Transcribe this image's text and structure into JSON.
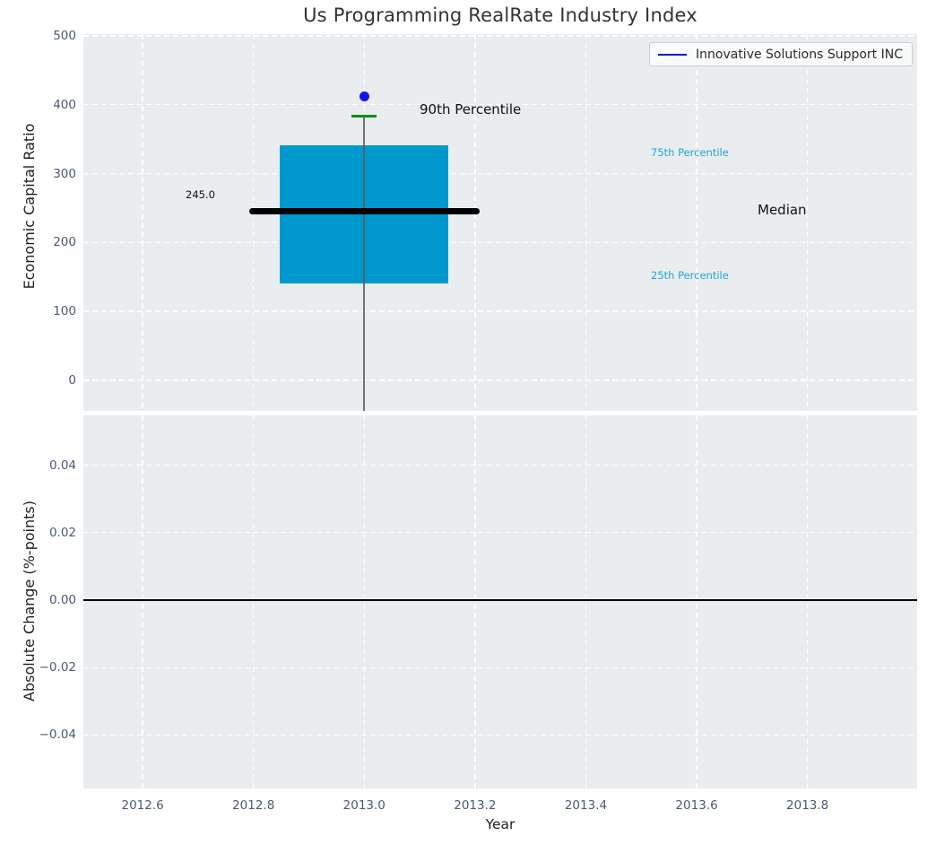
{
  "title": "Us Programming RealRate Industry Index",
  "legend": {
    "label": "Innovative Solutions Support INC",
    "line_color": "#1111e0"
  },
  "colors": {
    "box": "#0099cd",
    "percentile_label_text": "#22a5d4",
    "p90_cap": "#118c11",
    "company_point": "#1414ec",
    "median_line": "#000000",
    "whisker": "#5a5a5a",
    "plot_background": "#e9edef",
    "tick_text": "#4b5a6e",
    "zero_line": "#000000"
  },
  "chart_data": [
    {
      "type": "box",
      "title": "Us Programming RealRate Industry Index",
      "ylabel": "Economic Capital Ratio",
      "x": [
        2013.0
      ],
      "series": [
        {
          "name": "Innovative Solutions Support INC",
          "values": [
            412
          ]
        }
      ],
      "percentiles": {
        "p90": 383,
        "p75": 341,
        "median": 245.0,
        "p25": 140
      },
      "labels": {
        "p90": "90th Percentile",
        "p75": "75th Percentile",
        "median": "Median",
        "p25": "25th Percentile",
        "median_value": "245.0"
      },
      "ylim": [
        -44.3,
        502.6
      ],
      "xlim": [
        2012.493,
        2013.998
      ],
      "ytick_values": [
        0,
        100,
        200,
        300,
        400,
        500
      ],
      "ytick_labels": [
        "0",
        "100",
        "200",
        "300",
        "400",
        "500"
      ],
      "xtick_values": [
        2012.6,
        2012.8,
        2013.0,
        2013.2,
        2013.4,
        2013.6,
        2013.8
      ],
      "xtick_labels": [
        "2012.6",
        "2012.8",
        "2013.0",
        "2013.2",
        "2013.4",
        "2013.6",
        "2013.8"
      ],
      "grid": true,
      "legend_position": "upper right"
    },
    {
      "type": "line",
      "ylabel": "Absolute Change (%-points)",
      "xlabel": "Year",
      "x": [],
      "series": [],
      "zero_line": 0.0,
      "ylim": [
        -0.05583,
        0.05477
      ],
      "xlim": [
        2012.493,
        2013.998
      ],
      "ytick_values": [
        -0.04,
        -0.02,
        0.0,
        0.02,
        0.04
      ],
      "ytick_labels": [
        "−0.04",
        "−0.02",
        "0.00",
        "0.02",
        "0.04"
      ],
      "xtick_values": [
        2012.6,
        2012.8,
        2013.0,
        2013.2,
        2013.4,
        2013.6,
        2013.8
      ],
      "xtick_labels": [
        "2012.6",
        "2012.8",
        "2013.0",
        "2013.2",
        "2013.4",
        "2013.6",
        "2013.8"
      ],
      "grid": true
    }
  ]
}
